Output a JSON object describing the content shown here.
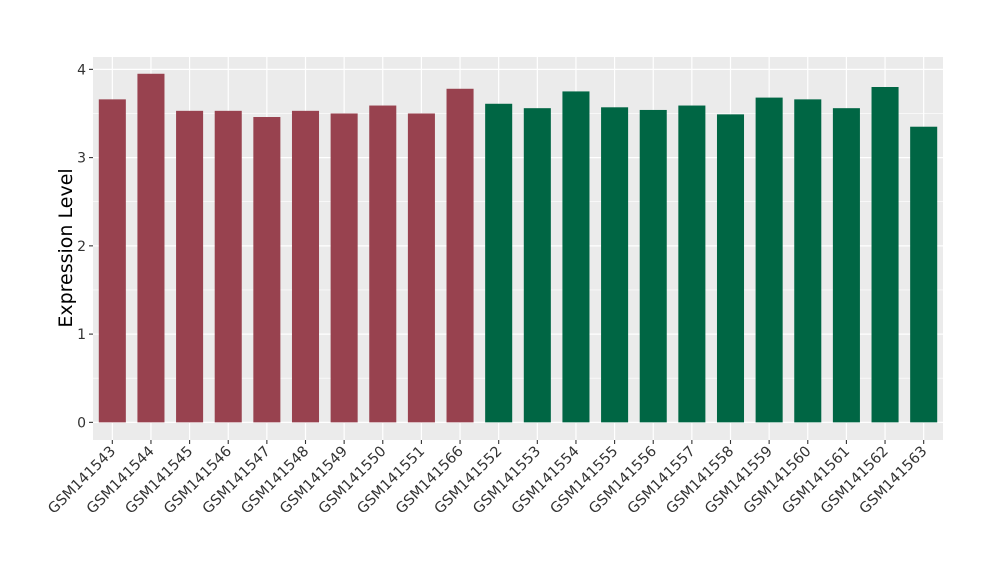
{
  "chart_data": {
    "type": "bar",
    "categories": [
      "GSM141543",
      "GSM141544",
      "GSM141545",
      "GSM141546",
      "GSM141547",
      "GSM141548",
      "GSM141549",
      "GSM141550",
      "GSM141551",
      "GSM141566",
      "GSM141552",
      "GSM141553",
      "GSM141554",
      "GSM141555",
      "GSM141556",
      "GSM141557",
      "GSM141558",
      "GSM141559",
      "GSM141560",
      "GSM141561",
      "GSM141562",
      "GSM141563"
    ],
    "values": [
      3.66,
      3.95,
      3.53,
      3.53,
      3.46,
      3.53,
      3.5,
      3.59,
      3.5,
      3.78,
      3.61,
      3.56,
      3.75,
      3.57,
      3.54,
      3.59,
      3.49,
      3.68,
      3.66,
      3.56,
      3.8,
      3.35
    ],
    "groups": [
      1,
      1,
      1,
      1,
      1,
      1,
      1,
      1,
      1,
      1,
      2,
      2,
      2,
      2,
      2,
      2,
      2,
      2,
      2,
      2,
      2,
      2
    ],
    "group_colors": {
      "1": "#98424f",
      "2": "#006644"
    },
    "title": "",
    "xlabel": "",
    "ylabel": "Expression Level",
    "ylim": [
      -0.2,
      4.14
    ],
    "yticks": [
      0,
      1,
      2,
      3,
      4
    ],
    "grid": true,
    "legend": "none",
    "panel_background": "#ebebeb",
    "gridline_color": "#ffffff"
  }
}
